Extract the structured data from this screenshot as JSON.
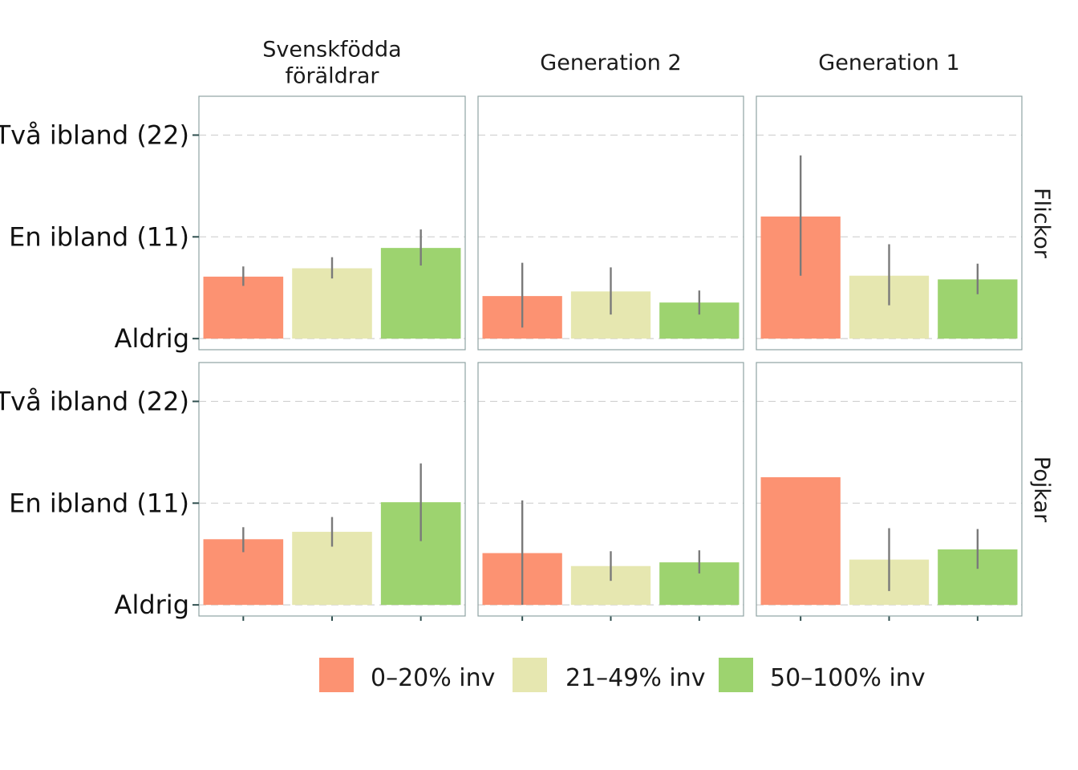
{
  "chart_data": {
    "type": "bar",
    "facet_columns": [
      "Svenskfödda\nföräldrar",
      "Generation 2",
      "Generation 1"
    ],
    "facet_rows": [
      "Flickor",
      "Pojkar"
    ],
    "y_ticks": [
      {
        "value": 0,
        "label": "Aldrig"
      },
      {
        "value": 11,
        "label": "En ibland (11)"
      },
      {
        "value": 22,
        "label": "Två ibland (22)"
      }
    ],
    "ylim": [
      -1.2,
      26.2
    ],
    "grid": "horizontal-dashed",
    "legend_placement": "bottom",
    "series": [
      {
        "name": "0–20% inv",
        "color": "#fc9272"
      },
      {
        "name": "21–49% inv",
        "color": "#e6e7b0"
      },
      {
        "name": "50–100% inv",
        "color": "#9dd36f"
      }
    ],
    "panels": [
      {
        "row": "Flickor",
        "col": "Svenskfödda\nföräldrar",
        "values": [
          6.7,
          7.6,
          9.8
        ],
        "ci": [
          [
            5.7,
            7.8
          ],
          [
            6.5,
            8.8
          ],
          [
            7.9,
            11.8
          ]
        ]
      },
      {
        "row": "Flickor",
        "col": "Generation 2",
        "values": [
          4.6,
          5.1,
          3.9
        ],
        "ci": [
          [
            1.2,
            8.2
          ],
          [
            2.6,
            7.7
          ],
          [
            2.6,
            5.2
          ]
        ]
      },
      {
        "row": "Flickor",
        "col": "Generation 1",
        "values": [
          13.2,
          6.8,
          6.4
        ],
        "ci": [
          [
            6.8,
            19.8
          ],
          [
            3.6,
            10.2
          ],
          [
            4.8,
            8.1
          ]
        ]
      },
      {
        "row": "Pojkar",
        "col": "Svenskfödda\nföräldrar",
        "values": [
          7.1,
          7.9,
          11.1
        ],
        "ci": [
          [
            5.7,
            8.4
          ],
          [
            6.3,
            9.5
          ],
          [
            6.9,
            15.3
          ]
        ]
      },
      {
        "row": "Pojkar",
        "col": "Generation 2",
        "values": [
          5.6,
          4.2,
          4.6
        ],
        "ci": [
          [
            0.0,
            11.3
          ],
          [
            2.6,
            5.8
          ],
          [
            3.4,
            5.9
          ]
        ]
      },
      {
        "row": "Pojkar",
        "col": "Generation 1",
        "values": [
          13.8,
          4.9,
          6.0
        ],
        "ci": [
          null,
          [
            1.5,
            8.3
          ],
          [
            3.9,
            8.2
          ]
        ]
      }
    ]
  }
}
